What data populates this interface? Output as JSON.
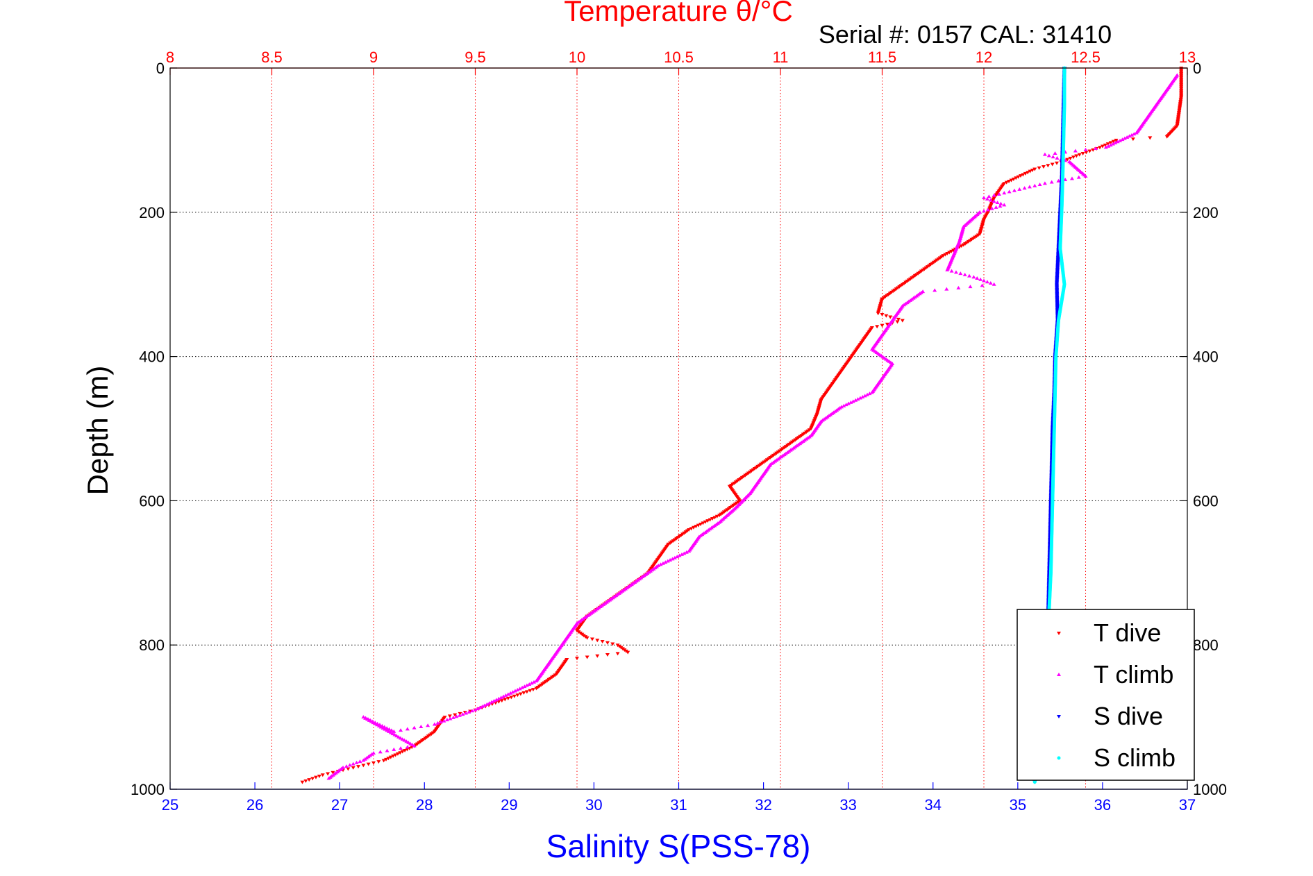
{
  "chart_data": {
    "type": "scatter",
    "title": "Temperature θ/°C",
    "subtitle": "Serial #: 0157  CAL: 31410",
    "xlabel": "Salinity S(PSS-78)",
    "ylabel": "Depth (m)",
    "salinity_axis": {
      "xlim": [
        25,
        37
      ],
      "ticks": [
        "25",
        "26",
        "27",
        "28",
        "29",
        "30",
        "31",
        "32",
        "33",
        "34",
        "35",
        "36",
        "37"
      ]
    },
    "temperature_axis": {
      "xlim": [
        8,
        13
      ],
      "ticks": [
        "8",
        "8.5",
        "9",
        "9.5",
        "10",
        "10.5",
        "11",
        "11.5",
        "12",
        "12.5",
        "13"
      ]
    },
    "depth_axis": {
      "ylim": [
        0,
        1000
      ],
      "reversed": true,
      "ticks": [
        "0",
        "200",
        "400",
        "600",
        "800",
        "1000"
      ]
    },
    "grid": true,
    "legend_position": "bottom-right",
    "colors": {
      "t_dive": "#ff0000",
      "t_climb": "#ff00ff",
      "s_dive": "#0000ff",
      "s_climb": "#00ffff"
    },
    "series": [
      {
        "name": "T dive",
        "axis": "temperature",
        "marker": "triangle-down",
        "points": [
          [
            12.97,
            0
          ],
          [
            12.97,
            20
          ],
          [
            12.97,
            40
          ],
          [
            12.96,
            60
          ],
          [
            12.95,
            80
          ],
          [
            12.9,
            95
          ],
          [
            12.65,
            100
          ],
          [
            12.57,
            110
          ],
          [
            12.47,
            120
          ],
          [
            12.38,
            130
          ],
          [
            12.25,
            140
          ],
          [
            12.1,
            160
          ],
          [
            12.05,
            180
          ],
          [
            12.02,
            200
          ],
          [
            12.0,
            210
          ],
          [
            11.98,
            230
          ],
          [
            11.9,
            245
          ],
          [
            11.8,
            260
          ],
          [
            11.7,
            280
          ],
          [
            11.6,
            300
          ],
          [
            11.5,
            320
          ],
          [
            11.48,
            340
          ],
          [
            11.6,
            350
          ],
          [
            11.45,
            360
          ],
          [
            11.4,
            380
          ],
          [
            11.35,
            400
          ],
          [
            11.3,
            420
          ],
          [
            11.25,
            440
          ],
          [
            11.2,
            460
          ],
          [
            11.18,
            480
          ],
          [
            11.15,
            500
          ],
          [
            11.05,
            520
          ],
          [
            10.95,
            540
          ],
          [
            10.85,
            560
          ],
          [
            10.75,
            580
          ],
          [
            10.8,
            600
          ],
          [
            10.7,
            620
          ],
          [
            10.55,
            640
          ],
          [
            10.45,
            660
          ],
          [
            10.4,
            680
          ],
          [
            10.35,
            700
          ],
          [
            10.25,
            720
          ],
          [
            10.15,
            740
          ],
          [
            10.05,
            760
          ],
          [
            10.0,
            780
          ],
          [
            10.05,
            790
          ],
          [
            10.2,
            800
          ],
          [
            10.25,
            810
          ],
          [
            9.95,
            820
          ],
          [
            9.9,
            840
          ],
          [
            9.8,
            860
          ],
          [
            9.6,
            880
          ],
          [
            9.5,
            890
          ],
          [
            9.35,
            900
          ],
          [
            9.3,
            920
          ],
          [
            9.2,
            940
          ],
          [
            9.05,
            960
          ],
          [
            8.9,
            970
          ],
          [
            8.75,
            980
          ],
          [
            8.65,
            990
          ]
        ]
      },
      {
        "name": "T climb",
        "axis": "temperature",
        "marker": "triangle-up",
        "points": [
          [
            12.95,
            10
          ],
          [
            12.9,
            30
          ],
          [
            12.85,
            50
          ],
          [
            12.8,
            70
          ],
          [
            12.75,
            90
          ],
          [
            12.6,
            110
          ],
          [
            12.3,
            120
          ],
          [
            12.42,
            130
          ],
          [
            12.5,
            150
          ],
          [
            12.3,
            160
          ],
          [
            12.15,
            170
          ],
          [
            12.0,
            180
          ],
          [
            12.1,
            190
          ],
          [
            11.98,
            200
          ],
          [
            11.9,
            220
          ],
          [
            11.88,
            240
          ],
          [
            11.85,
            260
          ],
          [
            11.82,
            280
          ],
          [
            11.95,
            290
          ],
          [
            12.05,
            300
          ],
          [
            11.7,
            310
          ],
          [
            11.6,
            330
          ],
          [
            11.55,
            350
          ],
          [
            11.5,
            370
          ],
          [
            11.45,
            390
          ],
          [
            11.55,
            410
          ],
          [
            11.5,
            430
          ],
          [
            11.45,
            450
          ],
          [
            11.3,
            470
          ],
          [
            11.2,
            490
          ],
          [
            11.15,
            510
          ],
          [
            11.05,
            530
          ],
          [
            10.95,
            550
          ],
          [
            10.9,
            570
          ],
          [
            10.85,
            590
          ],
          [
            10.78,
            610
          ],
          [
            10.7,
            630
          ],
          [
            10.6,
            650
          ],
          [
            10.55,
            670
          ],
          [
            10.4,
            690
          ],
          [
            10.3,
            710
          ],
          [
            10.2,
            730
          ],
          [
            10.1,
            750
          ],
          [
            10.0,
            770
          ],
          [
            9.95,
            790
          ],
          [
            9.9,
            810
          ],
          [
            9.85,
            830
          ],
          [
            9.8,
            850
          ],
          [
            9.65,
            870
          ],
          [
            9.5,
            890
          ],
          [
            9.3,
            910
          ],
          [
            9.1,
            920
          ],
          [
            8.95,
            900
          ],
          [
            9.2,
            940
          ],
          [
            9.0,
            950
          ],
          [
            8.95,
            960
          ],
          [
            8.85,
            970
          ],
          [
            8.78,
            985
          ]
        ]
      },
      {
        "name": "S dive",
        "axis": "salinity",
        "marker": "triangle-down",
        "points": [
          [
            35.55,
            0
          ],
          [
            35.54,
            50
          ],
          [
            35.53,
            100
          ],
          [
            35.52,
            150
          ],
          [
            35.5,
            200
          ],
          [
            35.48,
            250
          ],
          [
            35.46,
            300
          ],
          [
            35.47,
            350
          ],
          [
            35.44,
            400
          ],
          [
            35.43,
            450
          ],
          [
            35.41,
            500
          ],
          [
            35.4,
            550
          ],
          [
            35.39,
            600
          ],
          [
            35.38,
            650
          ],
          [
            35.37,
            700
          ],
          [
            35.36,
            750
          ],
          [
            35.34,
            800
          ],
          [
            35.3,
            850
          ],
          [
            35.25,
            900
          ],
          [
            35.22,
            950
          ],
          [
            35.2,
            990
          ]
        ]
      },
      {
        "name": "S climb",
        "axis": "salinity",
        "marker": "dot",
        "points": [
          [
            35.55,
            0
          ],
          [
            35.55,
            50
          ],
          [
            35.54,
            100
          ],
          [
            35.53,
            150
          ],
          [
            35.52,
            190
          ],
          [
            35.5,
            250
          ],
          [
            35.55,
            300
          ],
          [
            35.48,
            350
          ],
          [
            35.45,
            400
          ],
          [
            35.44,
            450
          ],
          [
            35.43,
            500
          ],
          [
            35.42,
            550
          ],
          [
            35.41,
            600
          ],
          [
            35.4,
            650
          ],
          [
            35.39,
            700
          ],
          [
            35.37,
            750
          ],
          [
            35.35,
            800
          ],
          [
            35.3,
            850
          ],
          [
            35.25,
            900
          ],
          [
            35.22,
            950
          ],
          [
            35.2,
            990
          ]
        ]
      }
    ]
  }
}
